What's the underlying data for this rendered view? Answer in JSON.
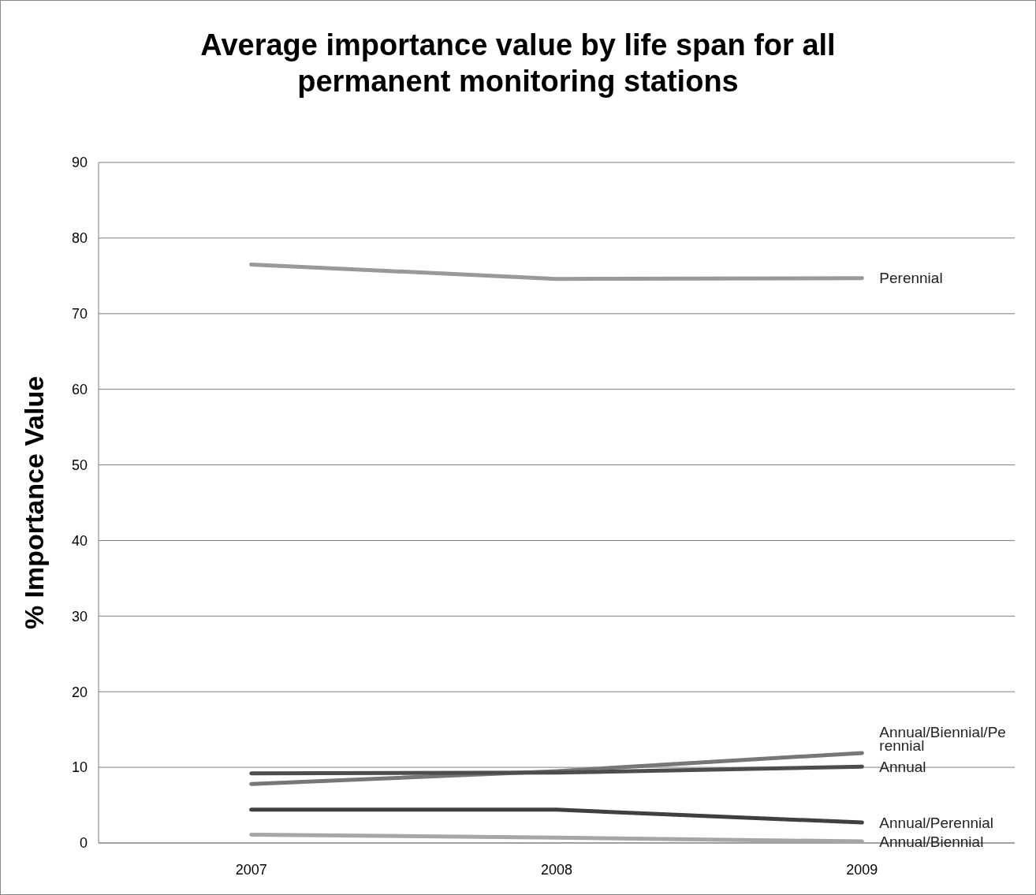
{
  "chart_data": {
    "type": "line",
    "title": "Average importance value by life span for all permanent monitoring stations",
    "ylabel": "% Importance Value",
    "categories": [
      "2007",
      "2008",
      "2009"
    ],
    "series": [
      {
        "name": "Perennial",
        "color": "#999999",
        "values": [
          76.5,
          74.6,
          74.7
        ]
      },
      {
        "name": "Annual/Biennial/Perennial",
        "color": "#777777",
        "values": [
          7.8,
          9.5,
          11.9
        ]
      },
      {
        "name": "Annual",
        "color": "#4d4d4d",
        "values": [
          9.2,
          9.3,
          10.1
        ]
      },
      {
        "name": "Annual/Perennial",
        "color": "#404040",
        "values": [
          4.4,
          4.4,
          2.7
        ]
      },
      {
        "name": "Annual/Biennial",
        "color": "#a6a6a6",
        "values": [
          1.1,
          0.7,
          0.2
        ]
      }
    ],
    "ylim": [
      0,
      90
    ],
    "yticks": [
      0,
      10,
      20,
      30,
      40,
      50,
      60,
      70,
      80,
      90
    ],
    "grid": "y",
    "marker": "none",
    "line_style": "solid"
  }
}
